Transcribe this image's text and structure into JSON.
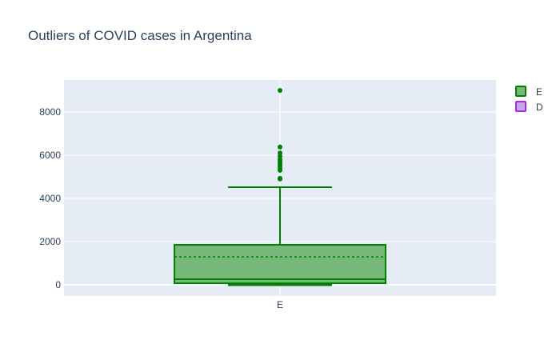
{
  "chart_data": {
    "type": "box",
    "title": "Outliers of COVID cases in Argentina",
    "xlabel": "",
    "ylabel": "",
    "categories": [
      "E"
    ],
    "ylim": [
      -500,
      9500
    ],
    "yticks": [
      0,
      2000,
      4000,
      6000,
      8000
    ],
    "yticklabels": [
      "0",
      "2000",
      "4000",
      "6000",
      "8000"
    ],
    "grid": true,
    "legend_position": "top-right",
    "series": [
      {
        "name": "E",
        "color": "#008000",
        "fill": "#77b777",
        "box": {
          "lowerfence": 0,
          "q1": 70,
          "median": 260,
          "mean": 1290,
          "q3": 1850,
          "upperfence": 4520,
          "outliers": [
            4900,
            4930,
            5300,
            5400,
            5500,
            5600,
            5700,
            5800,
            5950,
            6100,
            6380,
            9000
          ]
        }
      },
      {
        "name": "D",
        "color": "#9b30d9",
        "fill": "#caa2ee",
        "box": null
      }
    ]
  }
}
